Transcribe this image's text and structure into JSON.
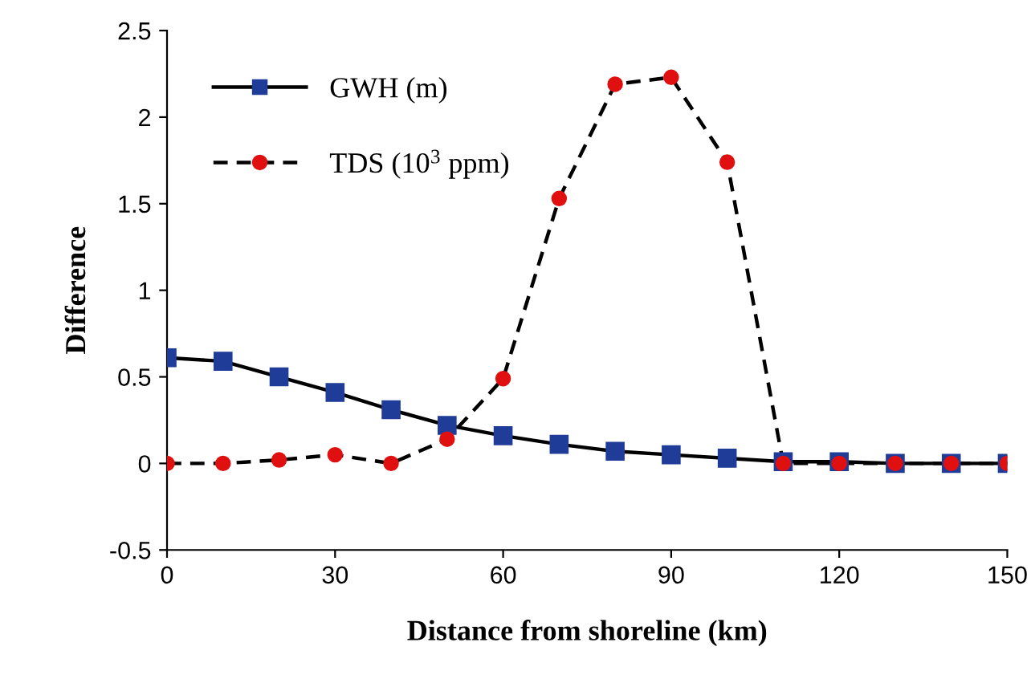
{
  "chart_data": {
    "type": "line",
    "xlabel": "Distance from shoreline (km)",
    "ylabel": "Difference",
    "x": [
      0,
      10,
      20,
      30,
      40,
      50,
      60,
      70,
      80,
      90,
      100,
      110,
      120,
      130,
      140,
      150
    ],
    "series": [
      {
        "name": "GWH (m)",
        "color": "#1f3c99",
        "marker": "square",
        "line_style": "solid",
        "values": [
          0.61,
          0.59,
          0.5,
          0.41,
          0.31,
          0.22,
          0.16,
          0.11,
          0.07,
          0.05,
          0.03,
          0.01,
          0.01,
          0.0,
          0.0,
          0.0
        ]
      },
      {
        "name": "TDS (10$^{3}$ ppm)",
        "color": "#e01010",
        "marker": "circle",
        "line_style": "dashed",
        "values": [
          0.0,
          0.0,
          0.02,
          0.05,
          0.0,
          0.14,
          0.49,
          1.53,
          2.19,
          2.23,
          1.74,
          0.0,
          0.0,
          0.0,
          0.0,
          0.0
        ]
      }
    ],
    "xlim": [
      0,
      150
    ],
    "xticks": [
      0,
      30,
      60,
      90,
      120,
      150
    ],
    "ylim": [
      -0.5,
      2.5
    ],
    "yticks": [
      -0.5,
      0,
      0.5,
      1,
      1.5,
      2,
      2.5
    ],
    "grid": false,
    "legend": "top left"
  }
}
